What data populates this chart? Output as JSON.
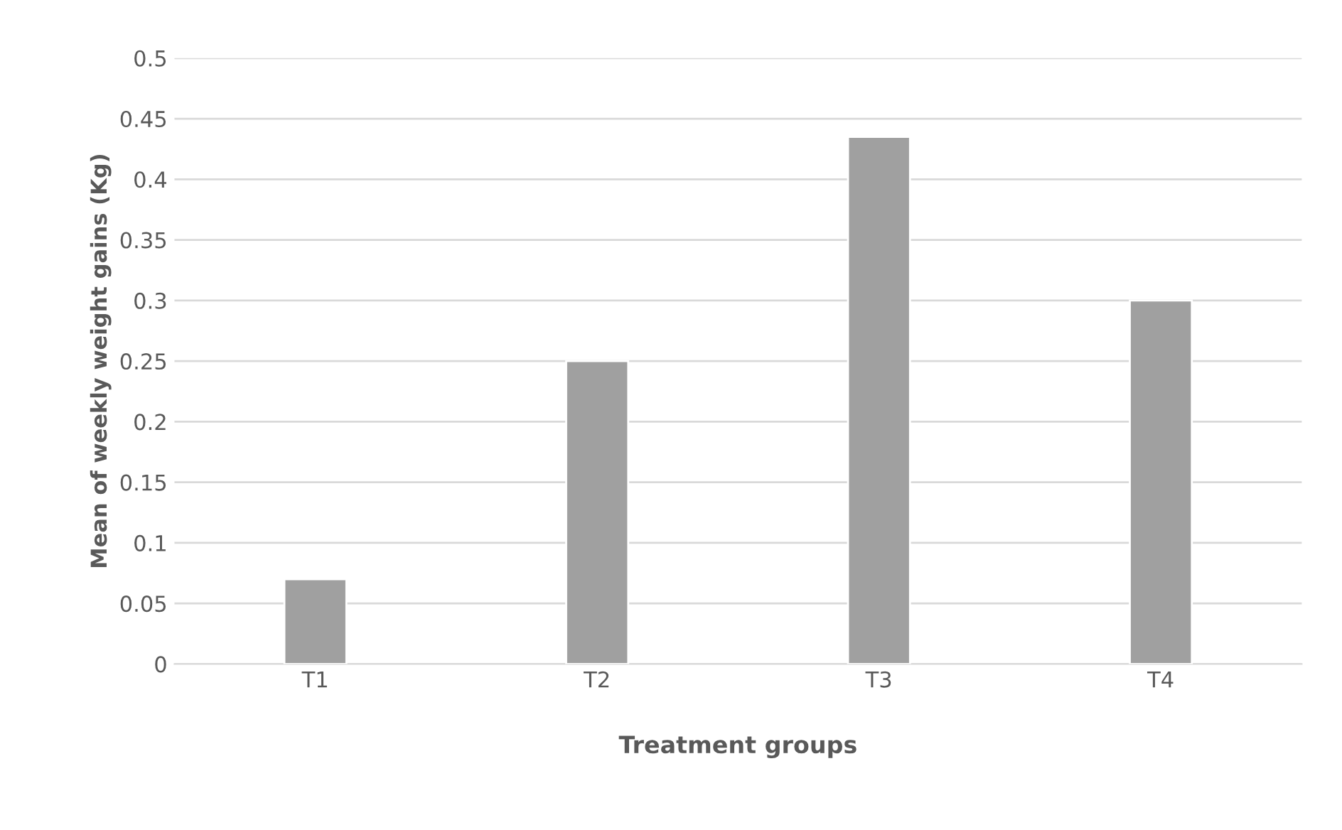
{
  "chart_data": {
    "type": "bar",
    "xlabel": "Treatment groups",
    "ylabel": "Mean of weekly weight gains (Kg)",
    "categories": [
      "T1",
      "T2",
      "T3",
      "T4"
    ],
    "values": [
      0.07,
      0.25,
      0.435,
      0.3
    ],
    "color": "#a0a0a0",
    "ylim": [
      0,
      0.5
    ],
    "yticks": [
      0,
      {
        "value": 0.05,
        "label": "0.05"
      },
      {
        "value": 0.1,
        "label": "0.1"
      },
      {
        "value": 0.15,
        "label": "0.15"
      },
      {
        "value": 0.2,
        "label": "0.2"
      },
      {
        "value": 0.25,
        "label": "0.25"
      },
      {
        "value": 0.3,
        "label": "0.3"
      },
      {
        "value": 0.35,
        "label": "0.35"
      },
      {
        "value": 0.4,
        "label": "0.4"
      },
      {
        "value": 0.45,
        "label": "0.45"
      },
      {
        "value": 0.5,
        "label": "0.5"
      }
    ],
    "grid": "y"
  }
}
